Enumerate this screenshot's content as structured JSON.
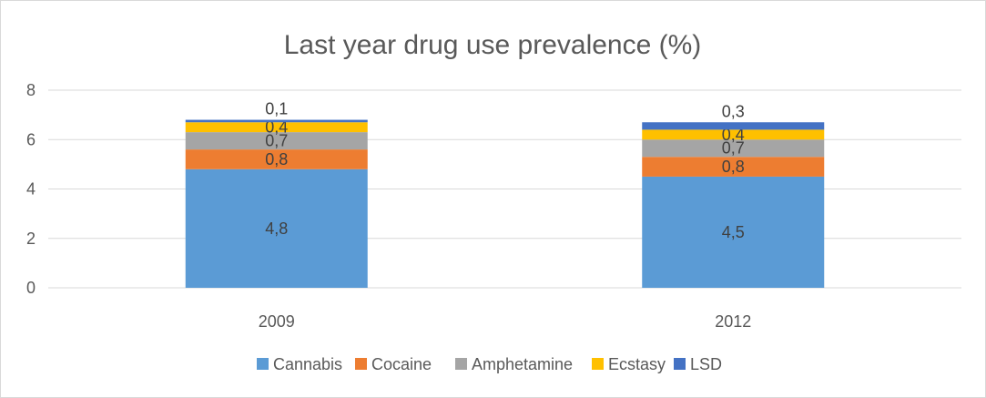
{
  "chart_data": {
    "type": "bar",
    "stacked": true,
    "title": "Last year drug use prevalence (%)",
    "xlabel": "",
    "ylabel": "",
    "categories": [
      "2009",
      "2012"
    ],
    "ylim": [
      0,
      8
    ],
    "yticks": [
      "0",
      "2",
      "4",
      "6",
      "8"
    ],
    "grid": true,
    "legend": "bottom",
    "series": [
      {
        "name": "Cannabis",
        "color": "#5b9bd5",
        "values": [
          4.8,
          4.5
        ],
        "labels": [
          "4,8",
          "4,5"
        ]
      },
      {
        "name": "Cocaine",
        "color": "#ed7d31",
        "values": [
          0.8,
          0.8
        ],
        "labels": [
          "0,8",
          "0,8"
        ]
      },
      {
        "name": "Amphetamine",
        "color": "#a5a5a5",
        "values": [
          0.7,
          0.7
        ],
        "labels": [
          "0,7",
          "0,7"
        ]
      },
      {
        "name": "Ecstasy",
        "color": "#ffc000",
        "values": [
          0.4,
          0.4
        ],
        "labels": [
          "0,4",
          "0,4"
        ]
      },
      {
        "name": "LSD",
        "color": "#4472c4",
        "values": [
          0.1,
          0.3
        ],
        "labels": [
          "0,1",
          "0,3"
        ]
      }
    ]
  }
}
